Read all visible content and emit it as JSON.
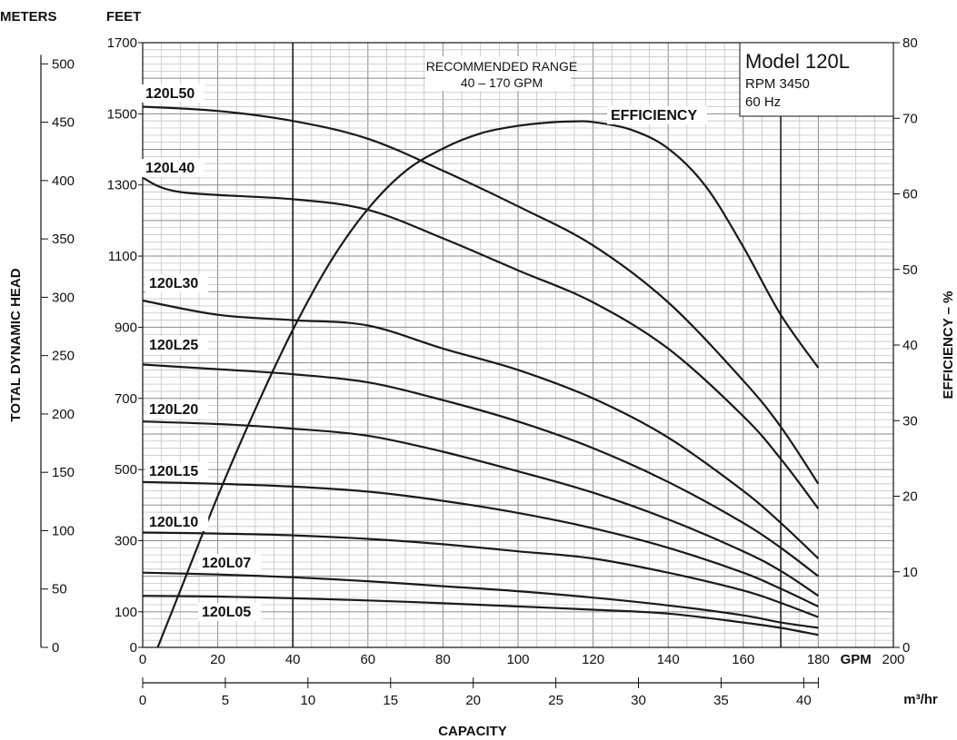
{
  "chart_data": {
    "type": "line",
    "title_box": {
      "model": "Model 120L",
      "rpm": "RPM 3450",
      "hz": "60 Hz"
    },
    "recommended_range": {
      "line1": "RECOMMENDED RANGE",
      "line2": "40 – 170 GPM",
      "from_gpm": 40,
      "to_gpm": 170
    },
    "left_meters_title": "METERS",
    "left_feet_title": "FEET",
    "ylabel": "TOTAL DYNAMIC HEAD",
    "y2label": "EFFICIENCY – %",
    "xlabel": "CAPACITY",
    "x_unit_gpm": "GPM",
    "x_unit_m3hr": "m³/hr",
    "xlim_gpm": [
      0,
      200
    ],
    "ylim_feet": [
      0,
      1700
    ],
    "y2lim_pct": [
      0,
      80
    ],
    "meters_ticks": [
      "0",
      "50",
      "100",
      "150",
      "200",
      "250",
      "300",
      "350",
      "400",
      "450",
      "500"
    ],
    "feet_ticks": [
      "0",
      "100",
      "300",
      "500",
      "700",
      "900",
      "1100",
      "1300",
      "1500",
      "1700"
    ],
    "eff_ticks": [
      "0",
      "10",
      "20",
      "30",
      "40",
      "50",
      "60",
      "70",
      "80"
    ],
    "gpm_ticks": [
      "0",
      "20",
      "40",
      "60",
      "80",
      "100",
      "120",
      "140",
      "160",
      "180",
      "200"
    ],
    "m3hr_ticks": [
      "0",
      "5",
      "10",
      "15",
      "20",
      "25",
      "30",
      "35",
      "40"
    ],
    "grid": true,
    "series": [
      {
        "name": "120L50",
        "x": [
          0,
          20,
          40,
          60,
          80,
          100,
          120,
          140,
          160,
          170,
          180
        ],
        "y": [
          1520,
          1508,
          1480,
          1430,
          1340,
          1240,
          1130,
          970,
          750,
          620,
          460
        ]
      },
      {
        "name": "120L40",
        "x": [
          0,
          10,
          40,
          60,
          80,
          100,
          120,
          140,
          160,
          170,
          180
        ],
        "y": [
          1320,
          1280,
          1260,
          1230,
          1150,
          1060,
          970,
          840,
          650,
          530,
          390
        ]
      },
      {
        "name": "120L30",
        "x": [
          0,
          20,
          40,
          60,
          80,
          100,
          120,
          140,
          160,
          170,
          180
        ],
        "y": [
          975,
          935,
          920,
          905,
          840,
          780,
          700,
          590,
          440,
          350,
          250
        ]
      },
      {
        "name": "120L25",
        "x": [
          0,
          20,
          40,
          60,
          80,
          100,
          120,
          140,
          160,
          170,
          180
        ],
        "y": [
          795,
          782,
          768,
          745,
          695,
          635,
          560,
          465,
          350,
          280,
          200
        ]
      },
      {
        "name": "120L20",
        "x": [
          0,
          20,
          40,
          60,
          80,
          100,
          120,
          140,
          160,
          170,
          180
        ],
        "y": [
          635,
          628,
          615,
          595,
          550,
          495,
          435,
          360,
          270,
          215,
          145
        ]
      },
      {
        "name": "120L15",
        "x": [
          0,
          20,
          40,
          60,
          80,
          100,
          120,
          140,
          160,
          170,
          180
        ],
        "y": [
          465,
          460,
          452,
          438,
          412,
          378,
          335,
          280,
          210,
          165,
          115
        ]
      },
      {
        "name": "120L10",
        "x": [
          0,
          20,
          40,
          60,
          80,
          100,
          120,
          140,
          160,
          170,
          180
        ],
        "y": [
          323,
          320,
          315,
          305,
          290,
          270,
          250,
          210,
          160,
          125,
          85
        ]
      },
      {
        "name": "120L07",
        "x": [
          0,
          20,
          40,
          60,
          80,
          100,
          120,
          140,
          160,
          170,
          180
        ],
        "y": [
          210,
          205,
          197,
          186,
          172,
          158,
          140,
          118,
          90,
          70,
          55
        ]
      },
      {
        "name": "120L05",
        "x": [
          0,
          20,
          40,
          60,
          80,
          100,
          120,
          140,
          160,
          170,
          180
        ],
        "y": [
          145,
          143,
          138,
          132,
          124,
          115,
          106,
          95,
          70,
          55,
          35
        ]
      },
      {
        "name": "EFFICIENCY",
        "axis": "right",
        "x": [
          4,
          10,
          20,
          30,
          40,
          50,
          60,
          70,
          80,
          90,
          100,
          110,
          116,
          120,
          130,
          140,
          150,
          160,
          170,
          180
        ],
        "y": [
          0,
          7.5,
          20,
          31.5,
          42,
          51,
          58,
          63,
          66,
          68,
          69,
          69.5,
          69.6,
          69.5,
          68.5,
          66,
          61,
          53,
          44,
          37
        ]
      }
    ]
  }
}
